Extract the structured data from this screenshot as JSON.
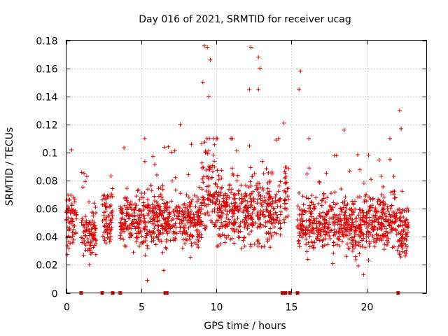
{
  "chart_data": {
    "type": "scatter",
    "title": "Day 016 of 2021, SRMTID for receiver ucag",
    "xlabel": "GPS time / hours",
    "ylabel": "SRMTID / TECUs",
    "xlim": [
      0,
      24
    ],
    "ylim": [
      0,
      0.18
    ],
    "xticks": [
      0,
      5,
      10,
      15,
      20
    ],
    "xtick_labels": [
      "0",
      "5",
      "10",
      "15",
      "20"
    ],
    "yticks": [
      0,
      0.02,
      0.04,
      0.06,
      0.08,
      0.1,
      0.12,
      0.14,
      0.16,
      0.18
    ],
    "ytick_labels": [
      "0",
      "0.02",
      "0.04",
      "0.06",
      "0.08",
      "0.1",
      "0.12",
      "0.14",
      "0.16",
      "0.18"
    ],
    "grid": true,
    "marker": "+",
    "color": "#e00000",
    "notable_points": [
      {
        "x": 9.2,
        "y": 0.176
      },
      {
        "x": 9.4,
        "y": 0.175
      },
      {
        "x": 12.3,
        "y": 0.175
      },
      {
        "x": 12.8,
        "y": 0.168
      },
      {
        "x": 12.9,
        "y": 0.16
      },
      {
        "x": 9.6,
        "y": 0.166
      },
      {
        "x": 15.6,
        "y": 0.158
      },
      {
        "x": 15.5,
        "y": 0.145
      },
      {
        "x": 12.2,
        "y": 0.145
      },
      {
        "x": 12.8,
        "y": 0.145
      },
      {
        "x": 9.1,
        "y": 0.15
      },
      {
        "x": 9.5,
        "y": 0.14
      },
      {
        "x": 22.2,
        "y": 0.13
      },
      {
        "x": 14.5,
        "y": 0.121
      },
      {
        "x": 18.5,
        "y": 0.116
      },
      {
        "x": 22.3,
        "y": 0.117
      },
      {
        "x": 7.6,
        "y": 0.12
      },
      {
        "x": 5.4,
        "y": 0.009
      },
      {
        "x": 6.5,
        "y": 0.016
      },
      {
        "x": 19.8,
        "y": 0.013
      }
    ],
    "zero_points_x": [
      1.0,
      2.4,
      3.1,
      3.6,
      6.6,
      6.7,
      14.4,
      14.6,
      14.9,
      15.4,
      22.1
    ],
    "segments": [
      {
        "start": 0.0,
        "end": 0.7,
        "base": 0.05,
        "spread": 0.035
      },
      {
        "start": 1.0,
        "end": 2.0,
        "base": 0.042,
        "spread": 0.03
      },
      {
        "start": 2.4,
        "end": 3.1,
        "base": 0.055,
        "spread": 0.03
      },
      {
        "start": 3.6,
        "end": 9.0,
        "base": 0.052,
        "spread": 0.035
      },
      {
        "start": 9.0,
        "end": 10.0,
        "base": 0.075,
        "spread": 0.06
      },
      {
        "start": 10.0,
        "end": 14.3,
        "base": 0.058,
        "spread": 0.04
      },
      {
        "start": 14.5,
        "end": 14.8,
        "base": 0.07,
        "spread": 0.04
      },
      {
        "start": 15.4,
        "end": 22.0,
        "base": 0.05,
        "spread": 0.035
      },
      {
        "start": 22.0,
        "end": 22.8,
        "base": 0.045,
        "spread": 0.03
      }
    ]
  }
}
